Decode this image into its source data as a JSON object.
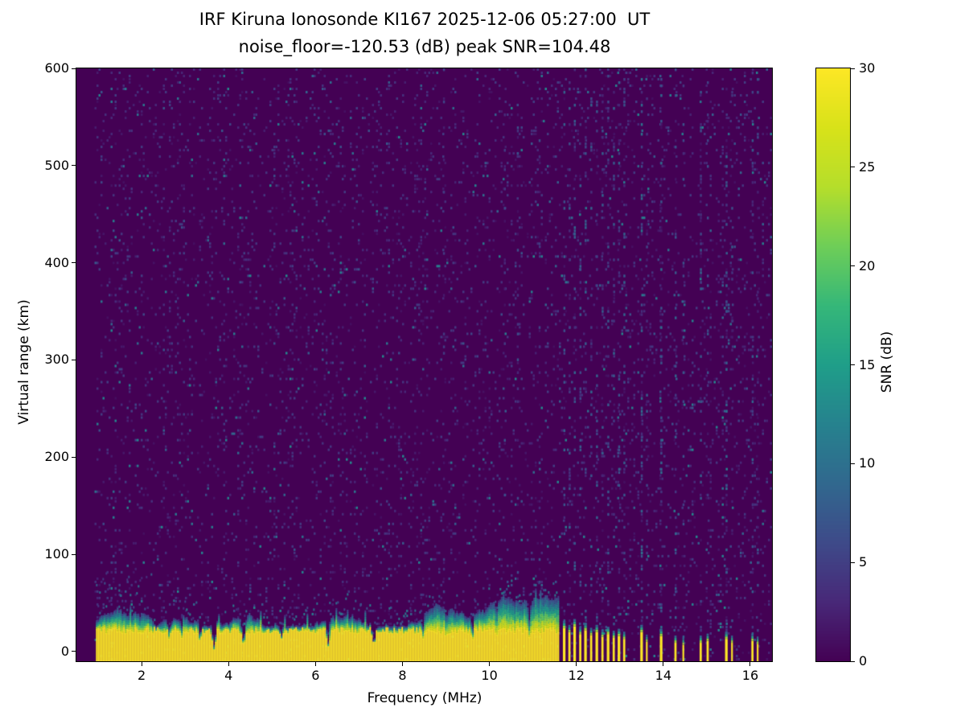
{
  "chart_data": {
    "type": "heatmap",
    "title": "IRF Kiruna Ionosonde KI167 2025-12-06 05:27:00  UT",
    "subtitle": "noise_floor=-120.53 (dB) peak SNR=104.48",
    "station": "IRF Kiruna Ionosonde KI167",
    "timestamp_ut": "2025-12-06 05:27:00",
    "noise_floor_db": -120.53,
    "peak_snr_db": 104.48,
    "xlabel": "Frequency (MHz)",
    "ylabel": "Virtual range (km)",
    "colorbar_label": "SNR (dB)",
    "xlim": [
      0.5,
      16.5
    ],
    "ylim": [
      -10,
      600
    ],
    "xticks": [
      2,
      4,
      6,
      8,
      10,
      12,
      14,
      16
    ],
    "yticks": [
      0,
      100,
      200,
      300,
      400,
      500,
      600
    ],
    "colorbar_ticks": [
      0,
      5,
      10,
      15,
      20,
      25,
      30
    ],
    "colorbar_range": [
      0,
      30
    ],
    "colormap": "viridis",
    "colormap_stops": [
      "#440154",
      "#482878",
      "#3e4a89",
      "#31688e",
      "#26828e",
      "#1f9e89",
      "#35b779",
      "#6ece58",
      "#b5de2b",
      "#d8e219",
      "#fde725"
    ],
    "background": {
      "data_min_freq": 0.93,
      "freq_bins": 346,
      "range_bins": 184,
      "speckle_probability": 0.085,
      "high_fraction": 0.15,
      "speckle_snr_low": [
        1,
        5
      ],
      "speckle_snr_high": [
        4,
        13
      ]
    },
    "ground_echo_band": {
      "freq_range": [
        0.95,
        11.6
      ],
      "base_km": -10,
      "solid_top_km": 22,
      "fringe_base_km": 34,
      "fringe_min_km": 26,
      "fringe_max_km": 58,
      "spray_max_freq": 2.4,
      "spray_top_km": 85
    },
    "band_notches": [
      {
        "freq": 2.62,
        "width": 0.05,
        "depth": 0.45
      },
      {
        "freq": 2.9,
        "width": 0.04,
        "depth": 0.35
      },
      {
        "freq": 3.33,
        "width": 0.05,
        "depth": 0.5
      },
      {
        "freq": 3.65,
        "width": 0.08,
        "depth": 0.9
      },
      {
        "freq": 4.33,
        "width": 0.07,
        "depth": 0.8
      },
      {
        "freq": 5.2,
        "width": 0.05,
        "depth": 0.4
      },
      {
        "freq": 6.28,
        "width": 0.07,
        "depth": 0.8
      },
      {
        "freq": 7.33,
        "width": 0.07,
        "depth": 0.75
      },
      {
        "freq": 8.45,
        "width": 0.05,
        "depth": 0.4
      },
      {
        "freq": 9.0,
        "width": 0.04,
        "depth": 0.35
      },
      {
        "freq": 9.6,
        "width": 0.05,
        "depth": 0.4
      },
      {
        "freq": 10.15,
        "width": 0.04,
        "depth": 0.35
      },
      {
        "freq": 10.9,
        "width": 0.05,
        "depth": 0.4
      }
    ],
    "rfi_bars": [
      {
        "freq": 11.72,
        "width": 0.06,
        "top_km": 24
      },
      {
        "freq": 11.84,
        "width": 0.05,
        "top_km": 20
      },
      {
        "freq": 11.96,
        "width": 0.06,
        "top_km": 26
      },
      {
        "freq": 12.09,
        "width": 0.05,
        "top_km": 18
      },
      {
        "freq": 12.21,
        "width": 0.06,
        "top_km": 22
      },
      {
        "freq": 12.34,
        "width": 0.05,
        "top_km": 17
      },
      {
        "freq": 12.47,
        "width": 0.06,
        "top_km": 20
      },
      {
        "freq": 12.6,
        "width": 0.05,
        "top_km": 15
      },
      {
        "freq": 12.73,
        "width": 0.06,
        "top_km": 18
      },
      {
        "freq": 12.86,
        "width": 0.05,
        "top_km": 14
      },
      {
        "freq": 12.98,
        "width": 0.06,
        "top_km": 16
      },
      {
        "freq": 13.1,
        "width": 0.05,
        "top_km": 13
      },
      {
        "freq": 13.5,
        "width": 0.06,
        "top_km": 20
      },
      {
        "freq": 13.62,
        "width": 0.04,
        "top_km": 10
      },
      {
        "freq": 13.95,
        "width": 0.06,
        "top_km": 16
      },
      {
        "freq": 14.28,
        "width": 0.05,
        "top_km": 9
      },
      {
        "freq": 14.46,
        "width": 0.04,
        "top_km": 7
      },
      {
        "freq": 14.86,
        "width": 0.05,
        "top_km": 9
      },
      {
        "freq": 15.02,
        "width": 0.05,
        "top_km": 11
      },
      {
        "freq": 15.45,
        "width": 0.06,
        "top_km": 13
      },
      {
        "freq": 15.58,
        "width": 0.04,
        "top_km": 9
      },
      {
        "freq": 16.05,
        "width": 0.05,
        "top_km": 11
      },
      {
        "freq": 16.17,
        "width": 0.04,
        "top_km": 8
      }
    ],
    "rfi_stripes": [
      {
        "freq": 6.25,
        "density": 0.08,
        "max_snr": 5
      },
      {
        "freq": 8.95,
        "density": 0.08,
        "max_snr": 5
      },
      {
        "freq": 10.35,
        "density": 0.14,
        "max_snr": 6
      },
      {
        "freq": 10.65,
        "density": 0.12,
        "max_snr": 6
      },
      {
        "freq": 11.15,
        "density": 0.12,
        "max_snr": 6
      },
      {
        "freq": 11.72,
        "density": 0.2,
        "max_snr": 8
      },
      {
        "freq": 11.84,
        "density": 0.18,
        "max_snr": 8
      },
      {
        "freq": 11.96,
        "density": 0.2,
        "max_snr": 8
      },
      {
        "freq": 12.09,
        "density": 0.18,
        "max_snr": 8
      },
      {
        "freq": 12.21,
        "density": 0.2,
        "max_snr": 8
      },
      {
        "freq": 12.34,
        "density": 0.18,
        "max_snr": 8
      },
      {
        "freq": 12.47,
        "density": 0.2,
        "max_snr": 8
      },
      {
        "freq": 12.6,
        "density": 0.16,
        "max_snr": 8
      },
      {
        "freq": 12.73,
        "density": 0.2,
        "max_snr": 8
      },
      {
        "freq": 12.86,
        "density": 0.16,
        "max_snr": 8
      },
      {
        "freq": 12.98,
        "density": 0.2,
        "max_snr": 8
      },
      {
        "freq": 13.1,
        "density": 0.16,
        "max_snr": 8
      },
      {
        "freq": 13.5,
        "density": 0.3,
        "max_snr": 10
      },
      {
        "freq": 13.62,
        "density": 0.15,
        "max_snr": 7
      },
      {
        "freq": 13.95,
        "density": 0.28,
        "max_snr": 9
      },
      {
        "freq": 14.28,
        "density": 0.2,
        "max_snr": 8
      },
      {
        "freq": 14.46,
        "density": 0.12,
        "max_snr": 7
      },
      {
        "freq": 14.86,
        "density": 0.18,
        "max_snr": 8
      },
      {
        "freq": 15.02,
        "density": 0.15,
        "max_snr": 7
      },
      {
        "freq": 15.45,
        "density": 0.26,
        "max_snr": 9
      },
      {
        "freq": 15.58,
        "density": 0.15,
        "max_snr": 7
      },
      {
        "freq": 16.05,
        "density": 0.22,
        "max_snr": 8
      },
      {
        "freq": 16.17,
        "density": 0.15,
        "max_snr": 7
      }
    ]
  }
}
